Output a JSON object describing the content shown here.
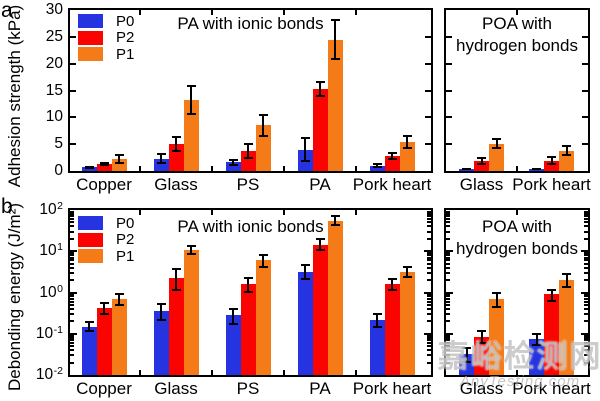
{
  "watermark": {
    "cn": "嘉峪检测网",
    "en": "AnyTesting.com"
  },
  "chart_data": [
    {
      "id": "a",
      "panel_letter": "a",
      "type": "bar",
      "yscale": "linear",
      "ylim": [
        0,
        30
      ],
      "ylabel": "Adhesion strength (kPa)",
      "yticks": [
        "0",
        "5",
        "10",
        "15",
        "20",
        "25",
        "30"
      ],
      "legend_position": "top-left",
      "subpanels": [
        {
          "title_lines": [
            "PA with ionic bonds"
          ],
          "categories": [
            "Copper",
            "Glass",
            "PS",
            "PA",
            "Pork heart"
          ],
          "series": [
            {
              "name": "P0",
              "color": "#2633E0",
              "values": [
                0.7,
                2.3,
                1.6,
                4.0,
                1.0
              ],
              "err_up": [
                0.3,
                1.0,
                0.7,
                2.4,
                0.5
              ],
              "err_dn": [
                0.3,
                1.0,
                0.7,
                2.4,
                0.5
              ]
            },
            {
              "name": "P2",
              "color": "#F90400",
              "values": [
                1.3,
                5.1,
                3.8,
                15.2,
                2.8
              ],
              "err_up": [
                0.4,
                1.5,
                1.5,
                1.5,
                0.8
              ],
              "err_dn": [
                0.4,
                1.5,
                1.5,
                1.5,
                0.8
              ]
            },
            {
              "name": "P1",
              "color": "#F57A18",
              "values": [
                2.3,
                13.3,
                8.5,
                24.5,
                5.4
              ],
              "err_up": [
                0.9,
                2.8,
                2.1,
                3.8,
                1.3
              ],
              "err_dn": [
                0.9,
                2.8,
                2.1,
                3.8,
                1.3
              ]
            }
          ]
        },
        {
          "title_lines": [
            "POA with",
            "hydrogen bonds"
          ],
          "categories": [
            "Glass",
            "Pork heart"
          ],
          "series": [
            {
              "name": "P0",
              "color": "#2633E0",
              "values": [
                0.4,
                0.4
              ],
              "err_up": [
                0.15,
                0.15
              ],
              "err_dn": [
                0.15,
                0.15
              ]
            },
            {
              "name": "P2",
              "color": "#F90400",
              "values": [
                1.8,
                1.9
              ],
              "err_up": [
                0.8,
                0.9
              ],
              "err_dn": [
                0.7,
                0.8
              ]
            },
            {
              "name": "P1",
              "color": "#F57A18",
              "values": [
                5.1,
                3.8
              ],
              "err_up": [
                1.1,
                1.1
              ],
              "err_dn": [
                1.0,
                1.0
              ]
            }
          ]
        }
      ]
    },
    {
      "id": "b",
      "panel_letter": "b",
      "type": "bar",
      "yscale": "log",
      "ylim": [
        0.01,
        100
      ],
      "ylabel": "Debonding energy (J/m²)",
      "yticks": [
        {
          "base": "10",
          "exp": "2"
        },
        {
          "base": "10",
          "exp": "1"
        },
        {
          "base": "10",
          "exp": "0"
        },
        {
          "base": "10",
          "exp": "-1"
        },
        {
          "base": "10",
          "exp": "-2"
        }
      ],
      "legend_position": "top-left",
      "subpanels": [
        {
          "title_lines": [
            "PA with ionic bonds"
          ],
          "categories": [
            "Copper",
            "Glass",
            "PS",
            "PA",
            "Pork heart"
          ],
          "series": [
            {
              "name": "P0",
              "color": "#2633E0",
              "values": [
                0.15,
                0.35,
                0.28,
                3.2,
                0.22
              ],
              "err_up": [
                0.05,
                0.2,
                0.15,
                1.6,
                0.1
              ],
              "err_dn": [
                0.04,
                0.15,
                0.12,
                1.2,
                0.08
              ]
            },
            {
              "name": "P2",
              "color": "#F90400",
              "values": [
                0.42,
                2.3,
                1.6,
                14.5,
                1.6
              ],
              "err_up": [
                0.18,
                1.6,
                0.8,
                6.0,
                0.6
              ],
              "err_dn": [
                0.14,
                1.2,
                0.6,
                4.5,
                0.5
              ]
            },
            {
              "name": "P1",
              "color": "#F57A18",
              "values": [
                0.68,
                11.0,
                6.0,
                55.0,
                3.2
              ],
              "err_up": [
                0.3,
                3.5,
                2.5,
                22.0,
                1.3
              ],
              "err_dn": [
                0.22,
                2.8,
                2.0,
                15.0,
                1.0
              ]
            }
          ]
        },
        {
          "title_lines": [
            "POA with",
            "hydrogen bonds"
          ],
          "categories": [
            "Glass",
            "Pork heart"
          ],
          "series": [
            {
              "name": "P0",
              "color": "#2633E0",
              "values": [
                0.032,
                0.075
              ],
              "err_up": [
                0.015,
                0.03
              ],
              "err_dn": [
                0.012,
                0.025
              ]
            },
            {
              "name": "P2",
              "color": "#F90400",
              "values": [
                0.085,
                0.9
              ],
              "err_up": [
                0.04,
                0.35
              ],
              "err_dn": [
                0.03,
                0.3
              ]
            },
            {
              "name": "P1",
              "color": "#F57A18",
              "values": [
                0.7,
                2.0
              ],
              "err_up": [
                0.35,
                0.9
              ],
              "err_dn": [
                0.27,
                0.7
              ]
            }
          ]
        }
      ]
    }
  ]
}
